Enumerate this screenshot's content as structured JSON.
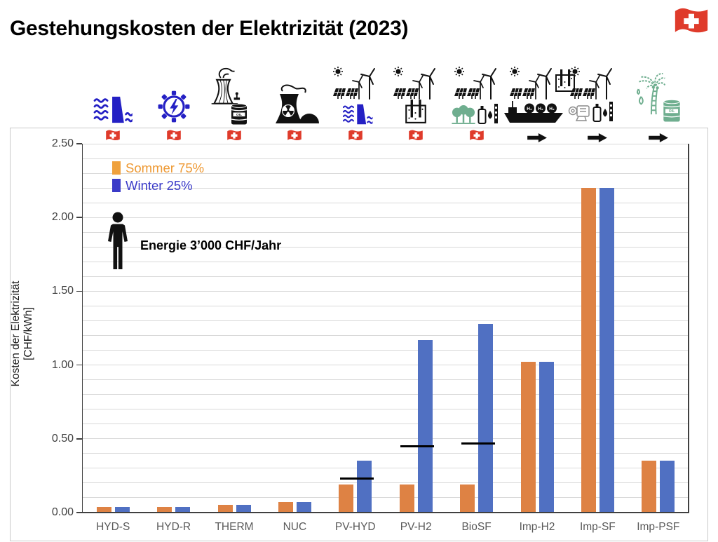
{
  "title": "Gestehungskosten der Elektrizität (2023)",
  "header_flag": "swiss-flag-icon",
  "legend": {
    "items": [
      {
        "label": "Sommer 75%",
        "color": "#EE9933",
        "swatch": "#EFA13D"
      },
      {
        "label": "Winter 25%",
        "color": "#3B3BC8",
        "swatch": "#3B3BC8"
      }
    ]
  },
  "annotation": {
    "icon": "person-icon",
    "text": "Energie 3’000 CHF/Jahr"
  },
  "chart_data": {
    "type": "bar",
    "title": "Gestehungskosten der Elektrizität (2023)",
    "xlabel": "",
    "ylabel": "Kosten der Elektrizität [CHF/kWh]",
    "ylim": [
      0,
      2.5
    ],
    "ytick_step": 0.5,
    "ytick_labels": [
      "0.00",
      "0.50",
      "1.00",
      "1.50",
      "2.00",
      "2.50"
    ],
    "grid_step": 0.1,
    "grid": true,
    "legend_position": "top-left-inside",
    "categories": [
      "HYD-S",
      "HYD-R",
      "THERM",
      "NUC",
      "PV-HYD",
      "PV-H2",
      "BioSF",
      "Imp-H2",
      "Imp-SF",
      "Imp-PSF"
    ],
    "series": [
      {
        "name": "Sommer 75%",
        "color": "#DE8244",
        "values": [
          0.04,
          0.04,
          0.05,
          0.07,
          0.19,
          0.19,
          0.19,
          1.02,
          2.2,
          0.35
        ]
      },
      {
        "name": "Winter 25%",
        "color": "#5070C2",
        "values": [
          0.04,
          0.04,
          0.05,
          0.07,
          0.35,
          1.17,
          1.28,
          1.02,
          2.2,
          0.35
        ]
      }
    ],
    "markers": [
      {
        "category": "PV-HYD",
        "value": 0.23
      },
      {
        "category": "PV-H2",
        "value": 0.45
      },
      {
        "category": "BioSF",
        "value": 0.47
      }
    ],
    "origin": [
      "swiss-flag",
      "swiss-flag",
      "swiss-flag",
      "swiss-flag",
      "swiss-flag",
      "swiss-flag",
      "swiss-flag",
      "import-arrow",
      "import-arrow",
      "import-arrow"
    ]
  },
  "icons": [
    {
      "category": "HYD-S",
      "name": "hydro-dam-icon"
    },
    {
      "category": "HYD-R",
      "name": "gear-lightning-icon"
    },
    {
      "category": "THERM",
      "name": "cooling-tower-oil-barrel-icon"
    },
    {
      "category": "NUC",
      "name": "nuclear-plant-icon"
    },
    {
      "category": "PV-HYD",
      "name": "pv-wind-dam-icon"
    },
    {
      "category": "PV-H2",
      "name": "pv-wind-electrolyzer-icon"
    },
    {
      "category": "BioSF",
      "name": "pv-wind-biomass-fuel-icon"
    },
    {
      "category": "Imp-H2",
      "name": "pv-wind-h2-ship-icon"
    },
    {
      "category": "Imp-SF",
      "name": "pv-wind-synfuel-plant-icon"
    },
    {
      "category": "Imp-PSF",
      "name": "palm-oil-barrel-icon"
    }
  ],
  "palette": {
    "icon_blue": "#2420C4",
    "icon_green": "#6FAE8F",
    "flag_red": "#DF3B2B",
    "grid": "#D9D9D9",
    "axis": "#404040"
  }
}
